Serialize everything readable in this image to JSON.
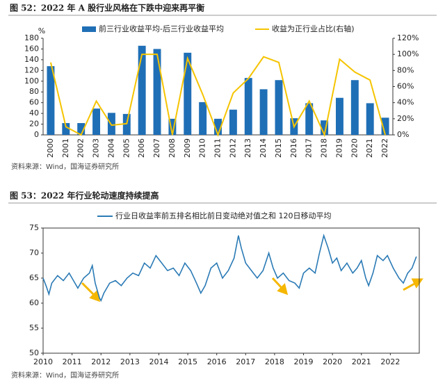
{
  "chart_data": [
    {
      "type": "combo",
      "title": "图 52：2022 年 A 股行业风格在下跌中迎来再平衡",
      "source": "资料来源：Wind，国海证券研究所",
      "ylabel": "%",
      "categories": [
        "2000",
        "2001",
        "2002",
        "2003",
        "2004",
        "2005",
        "2006",
        "2007",
        "2008",
        "2009",
        "2010",
        "2011",
        "2012",
        "2013",
        "2014",
        "2015",
        "2016",
        "2017",
        "2018",
        "2019",
        "2020",
        "2021",
        "2022"
      ],
      "series": [
        {
          "name": "前三行业收益平均-后三行业收益平均",
          "type": "bar",
          "color": "#1f6fb6",
          "values": [
            128,
            22,
            22,
            49,
            41,
            39,
            166,
            160,
            30,
            153,
            61,
            30,
            47,
            106,
            85,
            102,
            31,
            59,
            27,
            69,
            102,
            59,
            32
          ]
        },
        {
          "name": "收益为正行业占比(右轴)",
          "type": "line",
          "axis": "y2",
          "color": "#f5c400",
          "values": [
            90,
            10,
            0,
            42,
            12,
            14,
            100,
            100,
            0,
            95,
            50,
            0,
            52,
            70,
            97,
            90,
            10,
            42,
            0,
            94,
            78,
            68,
            0
          ]
        }
      ],
      "ylim": [
        0,
        180
      ],
      "yticks": [
        0,
        20,
        40,
        60,
        80,
        100,
        120,
        140,
        160,
        180
      ],
      "y2lim": [
        0,
        120
      ],
      "y2ticks": [
        {
          "value": 0,
          "label": "0%"
        },
        {
          "value": 20,
          "label": "20%"
        },
        {
          "value": 40,
          "label": "40%"
        },
        {
          "value": 60,
          "label": "60%"
        },
        {
          "value": 80,
          "label": "80%"
        },
        {
          "value": 100,
          "label": "100%"
        },
        {
          "value": 120,
          "label": "120%"
        }
      ],
      "grid": false
    },
    {
      "type": "line",
      "title": "图 53：2022 年行业轮动速度持续提高",
      "source": "资料来源：Wind，国海证券研究所",
      "x": [
        2010.0,
        2010.1,
        2010.2,
        2010.3,
        2010.5,
        2010.7,
        2010.9,
        2011.0,
        2011.2,
        2011.4,
        2011.6,
        2011.7,
        2011.8,
        2011.95,
        2012.0,
        2012.1,
        2012.3,
        2012.5,
        2012.7,
        2012.9,
        2013.1,
        2013.3,
        2013.5,
        2013.7,
        2013.9,
        2014.1,
        2014.3,
        2014.5,
        2014.7,
        2014.9,
        2015.1,
        2015.3,
        2015.45,
        2015.6,
        2015.8,
        2016.0,
        2016.2,
        2016.4,
        2016.6,
        2016.75,
        2016.85,
        2017.0,
        2017.2,
        2017.4,
        2017.6,
        2017.8,
        2017.95,
        2018.1,
        2018.3,
        2018.5,
        2018.7,
        2018.85,
        2019.0,
        2019.2,
        2019.4,
        2019.55,
        2019.7,
        2019.85,
        2020.0,
        2020.15,
        2020.3,
        2020.5,
        2020.7,
        2020.85,
        2021.0,
        2021.15,
        2021.25,
        2021.4,
        2021.55,
        2021.75,
        2021.9,
        2022.1,
        2022.3,
        2022.45,
        2022.6,
        2022.75,
        2022.9
      ],
      "series": [
        {
          "name": "行业日收益率前五排名相比前日变动绝对值之和 120日移动平均",
          "color": "#2a7ab5",
          "values": [
            65,
            63.5,
            61.8,
            64,
            65.5,
            64.5,
            66,
            65,
            63,
            65,
            66,
            67.5,
            64,
            61,
            60.5,
            62,
            64,
            64.5,
            63.5,
            65,
            66,
            65.5,
            68,
            67,
            69.5,
            68,
            66.5,
            67,
            65.5,
            68,
            66.5,
            64,
            62,
            63.5,
            67,
            68,
            65,
            66.5,
            69,
            73.5,
            71,
            68,
            66.5,
            65,
            66.5,
            70,
            67,
            65,
            66,
            64.5,
            64,
            63,
            66,
            67,
            66,
            70,
            73.5,
            71,
            68,
            69,
            66.5,
            68,
            66,
            67,
            68.5,
            65,
            63.5,
            66,
            69.5,
            68.5,
            69.5,
            67,
            65,
            64,
            66,
            67,
            69.3
          ]
        }
      ],
      "xlim": [
        2010,
        2023
      ],
      "xticks": [
        2010,
        2011,
        2012,
        2013,
        2014,
        2015,
        2016,
        2017,
        2018,
        2019,
        2020,
        2021,
        2022
      ],
      "ylim": [
        50,
        75
      ],
      "yticks": [
        50,
        55,
        60,
        65,
        70,
        75
      ],
      "grid": false
    }
  ]
}
